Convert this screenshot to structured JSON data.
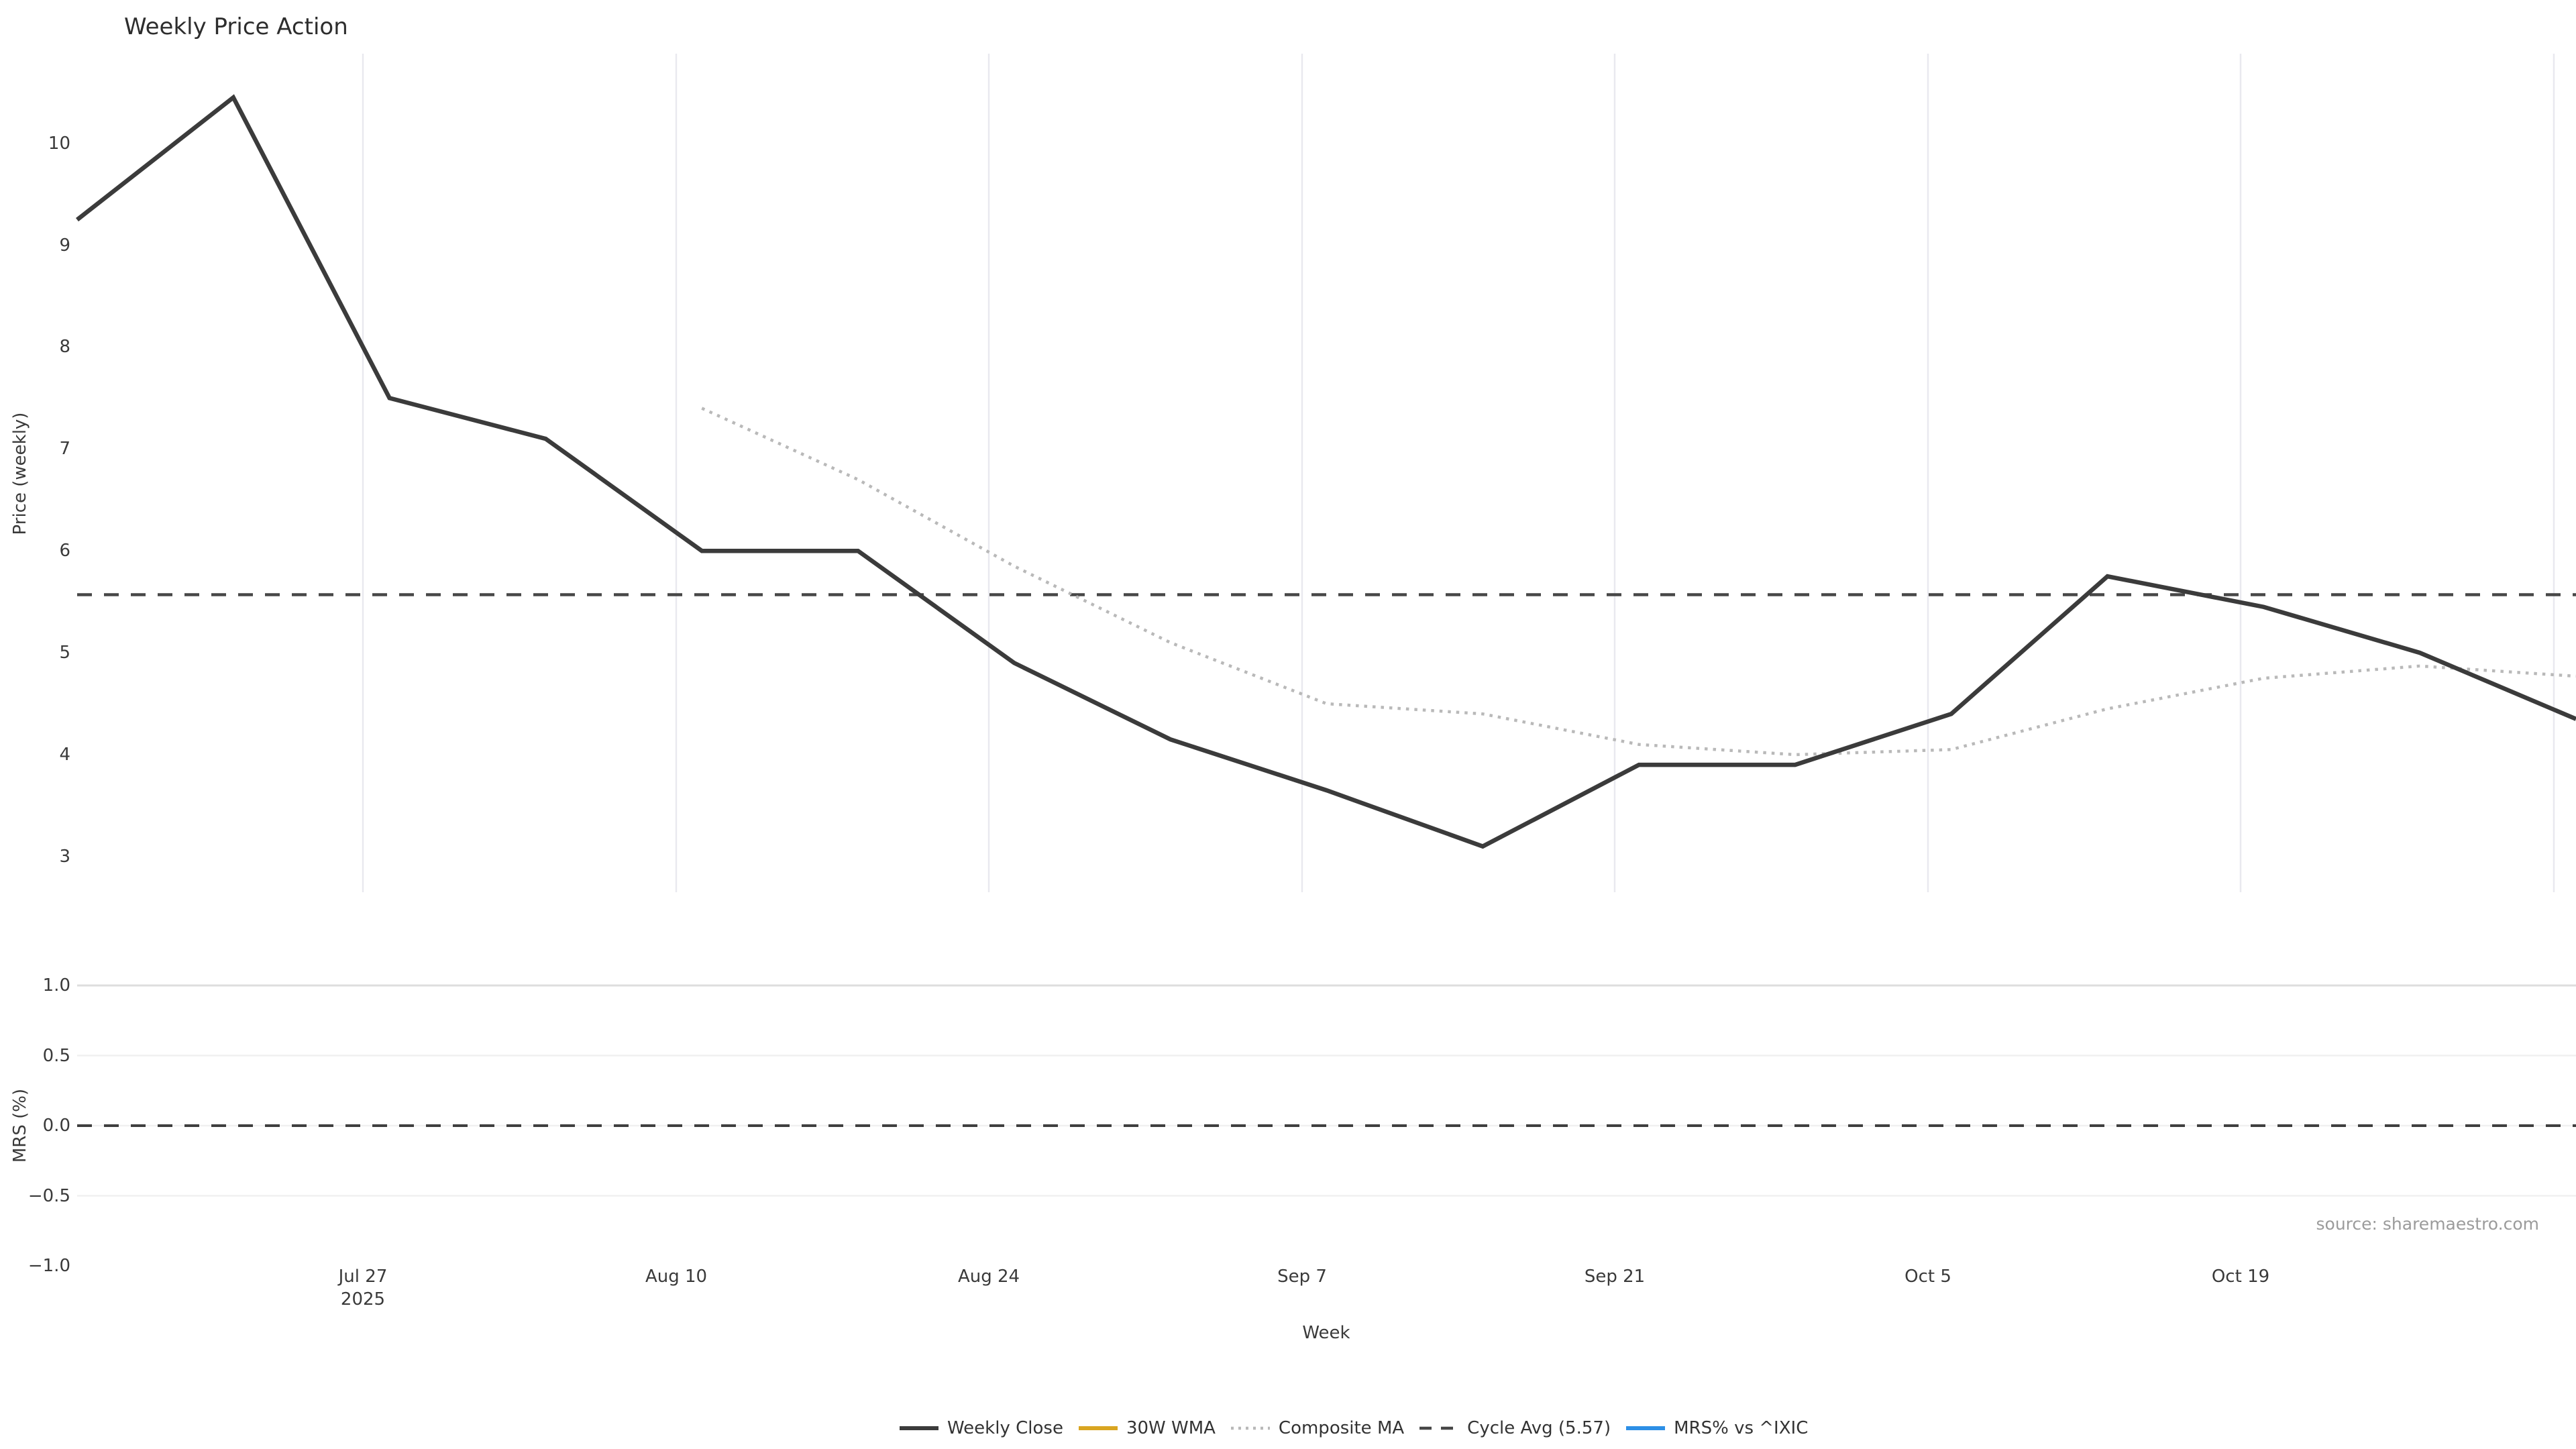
{
  "chart_data": {
    "type": "line",
    "title": "Weekly Price Action",
    "xlabel": "Week",
    "source_note": "source: sharemaestro.com",
    "x": [
      "2025-07-14",
      "2025-07-21",
      "2025-07-28",
      "2025-08-04",
      "2025-08-11",
      "2025-08-18",
      "2025-08-25",
      "2025-09-01",
      "2025-09-08",
      "2025-09-15",
      "2025-09-22",
      "2025-09-29",
      "2025-10-06",
      "2025-10-13",
      "2025-10-20",
      "2025-10-27",
      "2025-11-03"
    ],
    "x_tick_labels": [
      "Jul 27\n2025",
      "Aug 10",
      "Aug 24",
      "Sep 7",
      "Sep 21",
      "Oct 5",
      "Oct 19"
    ],
    "grid": "on",
    "legend_position": "bottom-center",
    "panels": [
      {
        "name": "price",
        "ylabel": "Price (weekly)",
        "ylim": [
          2.65,
          10.88
        ],
        "y_ticks": [
          10,
          9,
          8,
          7,
          6,
          5,
          4,
          3
        ],
        "y_tick_labels": [
          "10",
          "9",
          "8",
          "7",
          "6",
          "5",
          "4",
          "3"
        ],
        "series": [
          {
            "name": "Weekly Close",
            "style": "solid",
            "color": "#3b3b3b",
            "values": [
              9.25,
              10.45,
              7.5,
              7.1,
              6.0,
              6.0,
              4.9,
              4.15,
              3.65,
              3.1,
              3.9,
              3.9,
              4.4,
              5.75,
              5.45,
              5.0,
              4.35
            ]
          },
          {
            "name": "Composite MA",
            "style": "dotted",
            "color": "#b9b9b9",
            "values": [
              null,
              null,
              null,
              null,
              7.4,
              6.7,
              5.85,
              5.1,
              4.5,
              4.4,
              4.1,
              4.0,
              4.05,
              4.45,
              4.75,
              4.87,
              4.77
            ]
          }
        ],
        "reference_lines": [
          {
            "name": "Cycle Avg",
            "value": 5.57,
            "style": "dashed",
            "color": "#474747"
          }
        ]
      },
      {
        "name": "mrs",
        "ylabel": "MRS (%)",
        "ylim": [
          -1.0,
          1.0
        ],
        "y_ticks": [
          1.0,
          0.5,
          0.0,
          -0.5,
          -1.0
        ],
        "y_tick_labels": [
          "1.0",
          "0.5",
          "0.0",
          "−0.5",
          "−1.0"
        ],
        "series": [],
        "reference_lines": [
          {
            "name": "Zero",
            "value": 0.0,
            "style": "dashed",
            "color": "#3f3f3f"
          }
        ]
      }
    ],
    "legend": [
      {
        "label": "Weekly Close",
        "color": "#3b3b3b",
        "style": "solid"
      },
      {
        "label": "30W WMA",
        "color": "#d9a521",
        "style": "solid"
      },
      {
        "label": "Composite MA",
        "color": "#b9b9b9",
        "style": "dotted"
      },
      {
        "label": "Cycle Avg (5.57)",
        "color": "#474747",
        "style": "dashed"
      },
      {
        "label": "MRS% vs ^IXIC",
        "color": "#2d8fe6",
        "style": "solid"
      }
    ]
  }
}
